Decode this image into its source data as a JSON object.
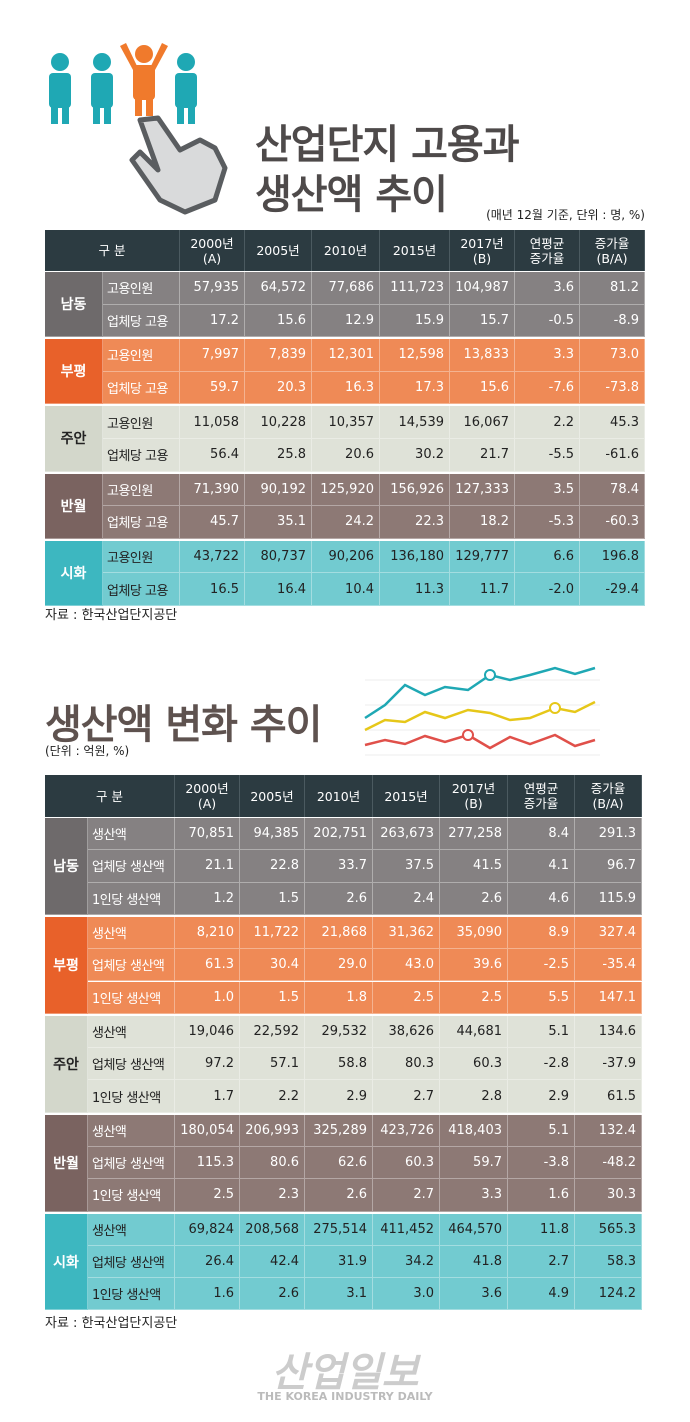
{
  "header": {
    "title_lines": [
      "산업단지 고용과",
      "생산액 추이"
    ],
    "note": "(매년 12월 기준, 단위 : 명, %)"
  },
  "tables": [
    {
      "columns": [
        [
          "구 분"
        ],
        [
          "2000년",
          "(A)"
        ],
        [
          "2005년"
        ],
        [
          "2010년"
        ],
        [
          "2015년"
        ],
        [
          "2017년",
          "(B)"
        ],
        [
          "연평균",
          "증가율"
        ],
        [
          "증가율",
          "(B/A)"
        ]
      ],
      "groups": [
        {
          "region": "남동",
          "rows": [
            {
              "label": "고용인원",
              "values": [
                "57,935",
                "64,572",
                "77,686",
                "111,723",
                "104,987",
                "3.6",
                "81.2"
              ]
            },
            {
              "label": "업체당 고용",
              "values": [
                "17.2",
                "15.6",
                "12.9",
                "15.9",
                "15.7",
                "-0.5",
                "-8.9"
              ]
            }
          ]
        },
        {
          "region": "부평",
          "rows": [
            {
              "label": "고용인원",
              "values": [
                "7,997",
                "7,839",
                "12,301",
                "12,598",
                "13,833",
                "3.3",
                "73.0"
              ]
            },
            {
              "label": "업체당 고용",
              "values": [
                "59.7",
                "20.3",
                "16.3",
                "17.3",
                "15.6",
                "-7.6",
                "-73.8"
              ]
            }
          ]
        },
        {
          "region": "주안",
          "rows": [
            {
              "label": "고용인원",
              "values": [
                "11,058",
                "10,228",
                "10,357",
                "14,539",
                "16,067",
                "2.2",
                "45.3"
              ]
            },
            {
              "label": "업체당 고용",
              "values": [
                "56.4",
                "25.8",
                "20.6",
                "30.2",
                "21.7",
                "-5.5",
                "-61.6"
              ]
            }
          ]
        },
        {
          "region": "반월",
          "rows": [
            {
              "label": "고용인원",
              "values": [
                "71,390",
                "90,192",
                "125,920",
                "156,926",
                "127,333",
                "3.5",
                "78.4"
              ]
            },
            {
              "label": "업체당 고용",
              "values": [
                "45.7",
                "35.1",
                "24.2",
                "22.3",
                "18.2",
                "-5.3",
                "-60.3"
              ]
            }
          ]
        },
        {
          "region": "시화",
          "rows": [
            {
              "label": "고용인원",
              "values": [
                "43,722",
                "80,737",
                "90,206",
                "136,180",
                "129,777",
                "6.6",
                "196.8"
              ]
            },
            {
              "label": "업체당 고용",
              "values": [
                "16.5",
                "16.4",
                "10.4",
                "11.3",
                "11.7",
                "-2.0",
                "-29.4"
              ]
            }
          ]
        }
      ],
      "source": "자료 : 한국산업단지공단"
    },
    {
      "title": "생산액 변화 추이",
      "unit": "(단위 : 억원, %)",
      "columns": [
        [
          "구 분"
        ],
        [
          "2000년",
          "(A)"
        ],
        [
          "2005년"
        ],
        [
          "2010년"
        ],
        [
          "2015년"
        ],
        [
          "2017년",
          "(B)"
        ],
        [
          "연평균",
          "증가율"
        ],
        [
          "증가율",
          "(B/A)"
        ]
      ],
      "groups": [
        {
          "region": "남동",
          "rows": [
            {
              "label": "생산액",
              "values": [
                "70,851",
                "94,385",
                "202,751",
                "263,673",
                "277,258",
                "8.4",
                "291.3"
              ]
            },
            {
              "label": "업체당 생산액",
              "values": [
                "21.1",
                "22.8",
                "33.7",
                "37.5",
                "41.5",
                "4.1",
                "96.7"
              ]
            },
            {
              "label": "1인당 생산액",
              "values": [
                "1.2",
                "1.5",
                "2.6",
                "2.4",
                "2.6",
                "4.6",
                "115.9"
              ]
            }
          ]
        },
        {
          "region": "부평",
          "rows": [
            {
              "label": "생산액",
              "values": [
                "8,210",
                "11,722",
                "21,868",
                "31,362",
                "35,090",
                "8.9",
                "327.4"
              ]
            },
            {
              "label": "업체당 생산액",
              "values": [
                "61.3",
                "30.4",
                "29.0",
                "43.0",
                "39.6",
                "-2.5",
                "-35.4"
              ]
            },
            {
              "label": "1인당 생산액",
              "values": [
                "1.0",
                "1.5",
                "1.8",
                "2.5",
                "2.5",
                "5.5",
                "147.1"
              ]
            }
          ]
        },
        {
          "region": "주안",
          "rows": [
            {
              "label": "생산액",
              "values": [
                "19,046",
                "22,592",
                "29,532",
                "38,626",
                "44,681",
                "5.1",
                "134.6"
              ]
            },
            {
              "label": "업체당 생산액",
              "values": [
                "97.2",
                "57.1",
                "58.8",
                "80.3",
                "60.3",
                "-2.8",
                "-37.9"
              ]
            },
            {
              "label": "1인당 생산액",
              "values": [
                "1.7",
                "2.2",
                "2.9",
                "2.7",
                "2.8",
                "2.9",
                "61.5"
              ]
            }
          ]
        },
        {
          "region": "반월",
          "rows": [
            {
              "label": "생산액",
              "values": [
                "180,054",
                "206,993",
                "325,289",
                "423,726",
                "418,403",
                "5.1",
                "132.4"
              ]
            },
            {
              "label": "업체당 생산액",
              "values": [
                "115.3",
                "80.6",
                "62.6",
                "60.3",
                "59.7",
                "-3.8",
                "-48.2"
              ]
            },
            {
              "label": "1인당 생산액",
              "values": [
                "2.5",
                "2.3",
                "2.6",
                "2.7",
                "3.3",
                "1.6",
                "30.3"
              ]
            }
          ]
        },
        {
          "region": "시화",
          "rows": [
            {
              "label": "생산액",
              "values": [
                "69,824",
                "208,568",
                "275,514",
                "411,452",
                "464,570",
                "11.8",
                "565.3"
              ]
            },
            {
              "label": "업체당 생산액",
              "values": [
                "26.4",
                "42.4",
                "31.9",
                "34.2",
                "41.8",
                "2.7",
                "58.3"
              ]
            },
            {
              "label": "1인당 생산액",
              "values": [
                "1.6",
                "2.6",
                "3.1",
                "3.0",
                "3.6",
                "4.9",
                "124.2"
              ]
            }
          ]
        }
      ],
      "source": "자료 : 한국산업단지공단"
    }
  ],
  "footer": {
    "logo": "산업일보",
    "tagline": "THE KOREA INDUSTRY DAILY"
  }
}
